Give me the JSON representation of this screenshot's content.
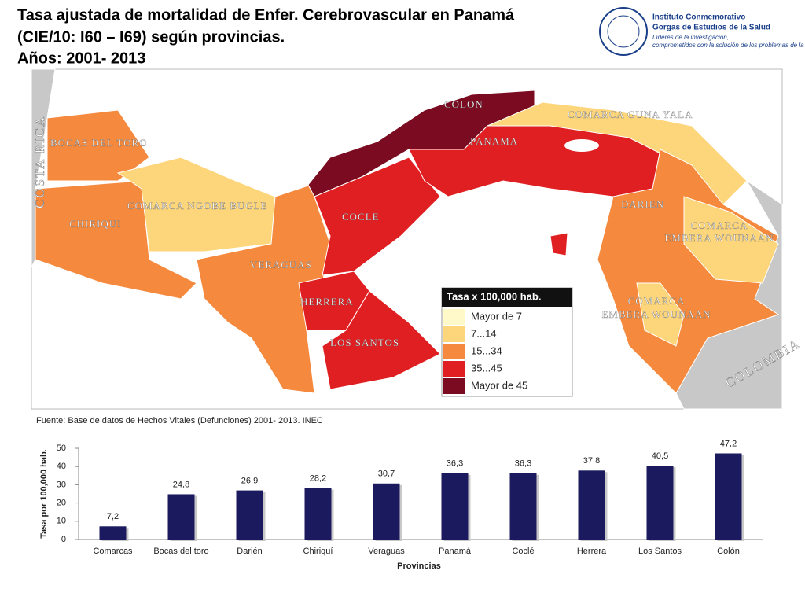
{
  "title": [
    "Tasa ajustada de mortalidad de Enfer. Cerebrovascular en Panamá",
    "(CIE/10: I60 – I69) según  provincias.",
    "Años: 2001- 2013"
  ],
  "logo": [
    "Instituto Conmemorativo",
    "Gorgas de Estudios de la Salud",
    "Líderes de la investigación,",
    "comprometidos con la solución de los problemas de la salud"
  ],
  "map_labels": [
    "COLON",
    "COMARCA GUNA YALA",
    "BOCAS DEL TORO",
    "PANAMA",
    "COSTA RICA",
    "COMARCA NGOBE BUGLE",
    "CHIRIQUI",
    "COCLE",
    "DARIEN",
    "VERAGUAS",
    "HERRERA",
    "LOS SANTOS",
    "COLOMBIA",
    [
      "COMARCA",
      "EMBERA WOUNAAN"
    ],
    [
      "COMARCA",
      "EMBERA WOUNAAN"
    ]
  ],
  "legend": {
    "title": "Tasa x 100,000 hab.",
    "items": [
      {
        "label": "Mayor de 7",
        "color": "#fff8c8"
      },
      {
        "label": "7...14",
        "color": "#fdd57a"
      },
      {
        "label": "15...34",
        "color": "#f5893d"
      },
      {
        "label": "35...45",
        "color": "#e01f22"
      },
      {
        "label": "Mayor de 45",
        "color": "#7a0b20"
      }
    ]
  },
  "source": "Fuente: Base de datos de Hechos Vitales (Defunciones) 2001- 2013. INEC",
  "chart_data": {
    "type": "bar",
    "categories": [
      "Comarcas",
      "Bocas del toro",
      "Darién",
      "Chiriquí",
      "Veraguas",
      "Panamá",
      "Coclé",
      "Herrera",
      "Los Santos",
      "Colón"
    ],
    "values": [
      7.2,
      24.8,
      26.9,
      28.2,
      30.7,
      36.3,
      36.3,
      37.8,
      40.5,
      47.2
    ],
    "value_labels": [
      "7,2",
      "24,8",
      "26,9",
      "28,2",
      "30,7",
      "36,3",
      "36,3",
      "37,8",
      "40,5",
      "47,2"
    ],
    "color": "#1b1a5e",
    "ylim": [
      0,
      50
    ],
    "yticks": [
      0,
      10,
      20,
      30,
      40,
      50
    ],
    "x_label": "Provincias",
    "y_label": "Tasa por 100,000 hab."
  }
}
